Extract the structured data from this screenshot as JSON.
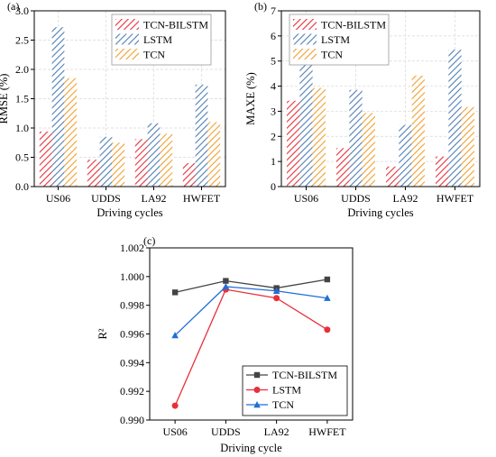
{
  "chart_data": [
    {
      "type": "bar",
      "panel_label": "(a)",
      "categories": [
        "US06",
        "UDDS",
        "LA92",
        "HWFET"
      ],
      "series": [
        {
          "name": "TCN-BILSTM",
          "values": [
            0.94,
            0.46,
            0.81,
            0.4
          ]
        },
        {
          "name": "LSTM",
          "values": [
            2.72,
            0.85,
            1.08,
            1.74
          ]
        },
        {
          "name": "TCN",
          "values": [
            1.85,
            0.75,
            0.9,
            1.1
          ]
        }
      ],
      "xlabel": "Driving cycles",
      "ylabel": "RMSE (%)",
      "ylim": [
        0,
        3.0
      ],
      "yticks": [
        "0.0",
        "0.5",
        "1.0",
        "1.5",
        "2.0",
        "2.5",
        "3.0"
      ],
      "grid": true,
      "legend": "top-center",
      "colors": [
        "#e8303a",
        "#4f7fb3",
        "#f0a030"
      ]
    },
    {
      "type": "bar",
      "panel_label": "(b)",
      "categories": [
        "US06",
        "UDDS",
        "LA92",
        "HWFET"
      ],
      "series": [
        {
          "name": "TCN-BILSTM",
          "values": [
            3.42,
            1.53,
            0.8,
            1.2
          ]
        },
        {
          "name": "LSTM",
          "values": [
            6.2,
            3.85,
            2.45,
            5.45
          ]
        },
        {
          "name": "TCN",
          "values": [
            3.93,
            2.93,
            4.42,
            3.17
          ]
        }
      ],
      "xlabel": "Driving cycles",
      "ylabel": "MAXE (%)",
      "ylim": [
        0,
        7
      ],
      "yticks": [
        "0",
        "1",
        "2",
        "3",
        "4",
        "5",
        "6",
        "7"
      ],
      "grid": true,
      "legend": "top-left",
      "colors": [
        "#e8303a",
        "#4f7fb3",
        "#f0a030"
      ]
    },
    {
      "type": "line",
      "panel_label": "(c)",
      "categories": [
        "US06",
        "UDDS",
        "LA92",
        "HWFET"
      ],
      "series": [
        {
          "name": "TCN-BILSTM",
          "values": [
            0.9989,
            0.9997,
            0.9992,
            0.9998
          ],
          "marker": "square"
        },
        {
          "name": "LSTM",
          "values": [
            0.991,
            0.9991,
            0.9985,
            0.9963
          ],
          "marker": "circle"
        },
        {
          "name": "TCN",
          "values": [
            0.9959,
            0.9993,
            0.999,
            0.9985
          ],
          "marker": "triangle"
        }
      ],
      "xlabel": "Driving cycle",
      "ylabel": "R²",
      "ylim": [
        0.99,
        1.002
      ],
      "yticks": [
        "0.990",
        "0.992",
        "0.994",
        "0.996",
        "0.998",
        "1.000",
        "1.002"
      ],
      "grid": false,
      "legend": "bottom-right",
      "colors": [
        "#444444",
        "#e8303a",
        "#1f6fd6"
      ]
    }
  ]
}
